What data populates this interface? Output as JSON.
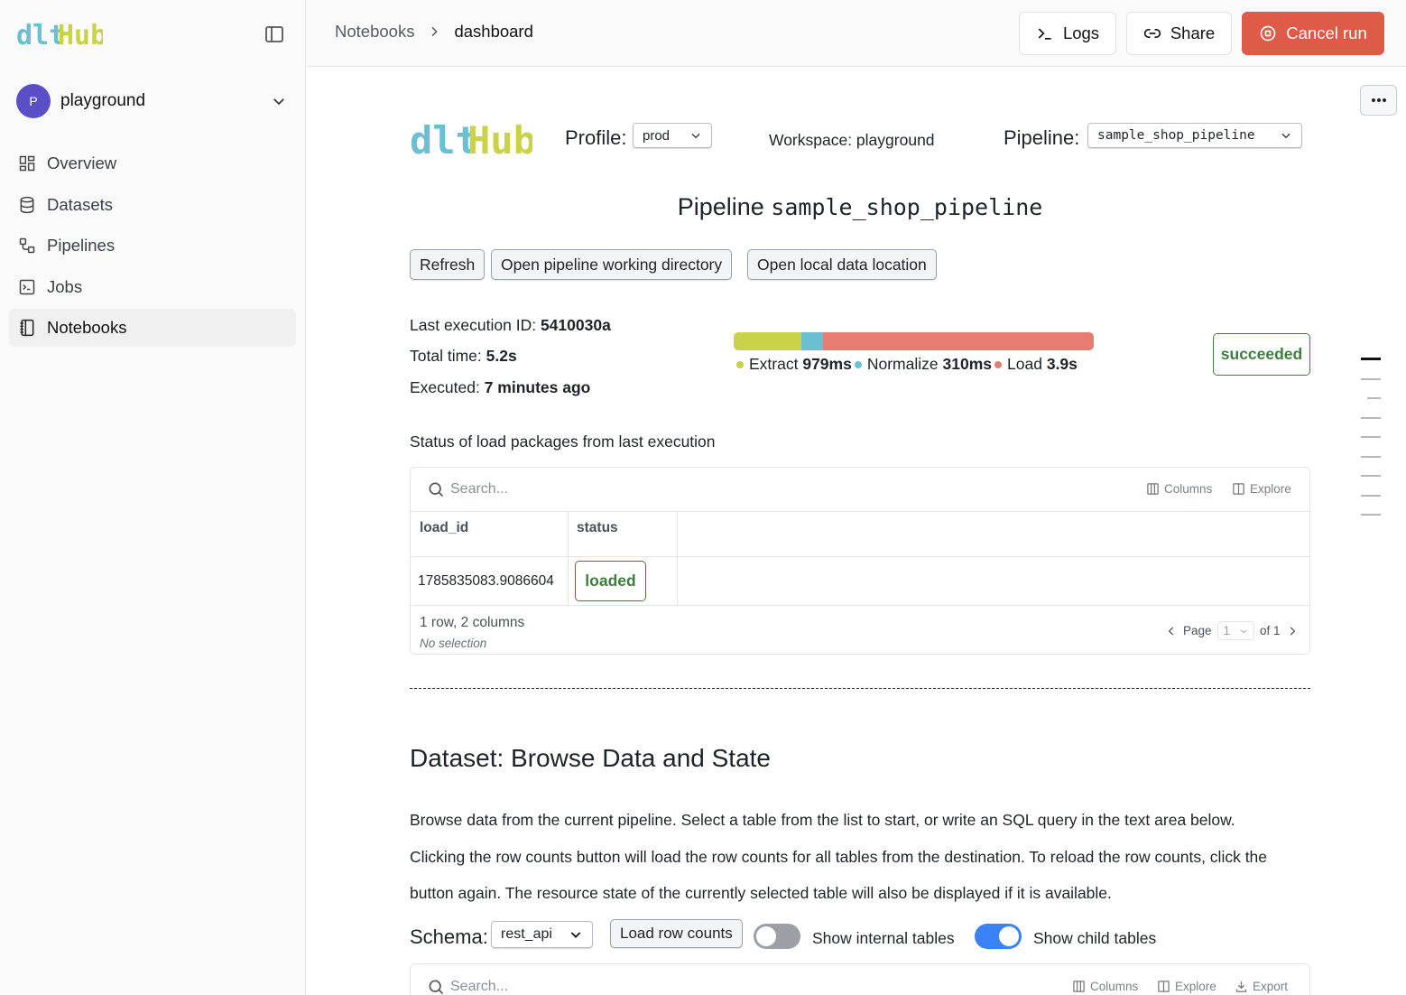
{
  "brand": {
    "logo_text_dlt": "dlt",
    "logo_text_hub": "Hub"
  },
  "workspace": {
    "avatar_letter": "P",
    "name": "playground"
  },
  "nav": [
    {
      "label": "Overview",
      "icon": "grid-icon"
    },
    {
      "label": "Datasets",
      "icon": "database-icon"
    },
    {
      "label": "Pipelines",
      "icon": "pipeline-icon"
    },
    {
      "label": "Jobs",
      "icon": "terminal-icon"
    },
    {
      "label": "Notebooks",
      "icon": "notebook-icon",
      "active": true
    }
  ],
  "breadcrumb": {
    "parent": "Notebooks",
    "current": "dashboard"
  },
  "toolbar": {
    "logs": "Logs",
    "share": "Share",
    "cancel": "Cancel run"
  },
  "header": {
    "profile_label": "Profile:",
    "profile_value": "prod",
    "workspace_text": "Workspace: playground",
    "pipeline_label": "Pipeline:",
    "pipeline_value": "sample_shop_pipeline"
  },
  "pipeline_title": {
    "prefix": "Pipeline",
    "name": "sample_shop_pipeline"
  },
  "actions": {
    "refresh": "Refresh",
    "open_dir": "Open pipeline working directory",
    "open_local": "Open local data location"
  },
  "execution": {
    "id_label": "Last execution ID:",
    "id_value": "5410030a",
    "time_label": "Total time:",
    "time_value": "5.2s",
    "executed_label": "Executed:",
    "executed_value": "7 minutes ago",
    "status": "succeeded",
    "phases": [
      {
        "name": "Extract",
        "value": "979ms",
        "ms": 979,
        "color": "#c9d249"
      },
      {
        "name": "Normalize",
        "value": "310ms",
        "ms": 310,
        "color": "#6bbfd0"
      },
      {
        "name": "Load",
        "value": "3.9s",
        "ms": 3900,
        "color": "#e57d73"
      }
    ]
  },
  "packages": {
    "heading": "Status of load packages from last execution",
    "search_placeholder": "Search...",
    "columns_label": "Columns",
    "explore_label": "Explore",
    "headers": [
      "load_id",
      "status"
    ],
    "rows": [
      {
        "load_id": "1785835083.9086604",
        "status": "loaded"
      }
    ],
    "summary": "1 row, 2 columns",
    "selection": "No selection",
    "page_label": "Page",
    "page_value": "1",
    "page_of": "of 1"
  },
  "dataset": {
    "heading": "Dataset: Browse Data and State",
    "para1": "Browse data from the current pipeline. Select a table from the list to start, or write an SQL query in the text area below.",
    "para2": "Clicking the row counts button will load the row counts for all tables from the destination. To reload the row counts, click the",
    "para3": "button again. The resource state of the currently selected table will also be displayed if it is available.",
    "schema_label": "Schema:",
    "schema_value": "rest_api",
    "load_counts": "Load row counts",
    "internal_label": "Show internal tables",
    "internal_on": false,
    "child_label": "Show child tables",
    "child_on": true,
    "search_placeholder": "Search...",
    "columns_label": "Columns",
    "explore_label": "Explore",
    "export_label": "Export"
  },
  "colors": {
    "accent_red": "#e05a4a",
    "success": "#3f7d3f",
    "toggle_on": "#3b82f6",
    "logo_dlt": "#6bbfd0",
    "logo_hub": "#c9d249"
  }
}
